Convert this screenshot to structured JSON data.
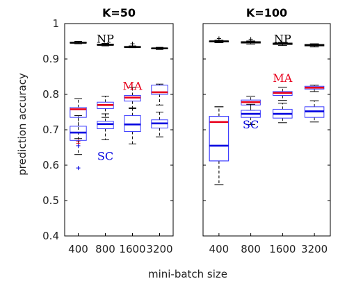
{
  "chart_data": {
    "type": "boxplot",
    "xlabel": "mini-batch size",
    "ylabel": "prediction accuracy",
    "ylim": [
      0.4,
      1
    ],
    "yticks": [
      "0.4",
      "0.5",
      "0.6",
      "0.7",
      "0.8",
      "0.9",
      "1"
    ],
    "categories": [
      "400",
      "800",
      "1600",
      "3200"
    ],
    "colors": {
      "NP": "#000000",
      "MA": "#e8001c",
      "SC": "#0000e0",
      "box": "#3a3aff",
      "median_NP": "#000000"
    },
    "panels": [
      {
        "title": "K=50",
        "annotations": [
          {
            "text": "NP",
            "color": "#000000",
            "x": "800",
            "y": 0.958
          },
          {
            "text": "MA",
            "color": "#e8001c",
            "x": "1600",
            "y": 0.825
          },
          {
            "text": "SC",
            "color": "#0000e0",
            "x": "800",
            "y": 0.626
          }
        ],
        "series": [
          {
            "name": "NP",
            "boxes": [
              {
                "whislo": 0.943,
                "q1": 0.945,
                "med": 0.946,
                "q3": 0.947,
                "whishi": 0.95,
                "outliers": []
              },
              {
                "whislo": 0.937,
                "q1": 0.939,
                "med": 0.94,
                "q3": 0.942,
                "whishi": 0.944,
                "outliers": []
              },
              {
                "whislo": 0.932,
                "q1": 0.933,
                "med": 0.934,
                "q3": 0.935,
                "whishi": 0.937,
                "outliers": [
                  0.943
                ]
              },
              {
                "whislo": 0.927,
                "q1": 0.929,
                "med": 0.93,
                "q3": 0.931,
                "whishi": 0.933,
                "outliers": []
              }
            ]
          },
          {
            "name": "MA",
            "boxes": [
              {
                "whislo": 0.675,
                "q1": 0.735,
                "med": 0.758,
                "q3": 0.763,
                "whishi": 0.788,
                "outliers": [
                  0.668,
                  0.662
                ]
              },
              {
                "whislo": 0.735,
                "q1": 0.76,
                "med": 0.77,
                "q3": 0.778,
                "whishi": 0.795,
                "outliers": []
              },
              {
                "whislo": 0.762,
                "q1": 0.781,
                "med": 0.791,
                "q3": 0.797,
                "whishi": 0.82,
                "outliers": []
              },
              {
                "whislo": 0.77,
                "q1": 0.8,
                "med": 0.806,
                "q3": 0.826,
                "whishi": 0.829,
                "outliers": []
              }
            ]
          },
          {
            "name": "SC",
            "boxes": [
              {
                "whislo": 0.63,
                "q1": 0.67,
                "med": 0.692,
                "q3": 0.71,
                "whishi": 0.74,
                "outliers": [
                  0.655,
                  0.592
                ]
              },
              {
                "whislo": 0.672,
                "q1": 0.703,
                "med": 0.716,
                "q3": 0.724,
                "whishi": 0.745,
                "outliers": []
              },
              {
                "whislo": 0.66,
                "q1": 0.695,
                "med": 0.715,
                "q3": 0.74,
                "whishi": 0.76,
                "outliers": []
              },
              {
                "whislo": 0.68,
                "q1": 0.705,
                "med": 0.718,
                "q3": 0.728,
                "whishi": 0.75,
                "outliers": []
              }
            ]
          }
        ]
      },
      {
        "title": "K=100",
        "annotations": [
          {
            "text": "NP",
            "color": "#000000",
            "x": "1600",
            "y": 0.958
          },
          {
            "text": "MA",
            "color": "#e8001c",
            "x": "1600",
            "y": 0.847
          },
          {
            "text": "SC",
            "color": "#0000e0",
            "x": "800",
            "y": 0.716
          }
        ],
        "series": [
          {
            "name": "NP",
            "boxes": [
              {
                "whislo": 0.946,
                "q1": 0.948,
                "med": 0.95,
                "q3": 0.951,
                "whishi": 0.953,
                "outliers": [
                  0.958
                ]
              },
              {
                "whislo": 0.942,
                "q1": 0.945,
                "med": 0.947,
                "q3": 0.949,
                "whishi": 0.951,
                "outliers": [
                  0.956
                ]
              },
              {
                "whislo": 0.938,
                "q1": 0.941,
                "med": 0.943,
                "q3": 0.945,
                "whishi": 0.947,
                "outliers": []
              },
              {
                "whislo": 0.934,
                "q1": 0.937,
                "med": 0.939,
                "q3": 0.941,
                "whishi": 0.943,
                "outliers": []
              }
            ]
          },
          {
            "name": "MA",
            "boxes": [
              {
                "whislo": 0.545,
                "q1": 0.612,
                "med": 0.722,
                "q3": 0.738,
                "whishi": 0.765,
                "outliers": []
              },
              {
                "whislo": 0.755,
                "q1": 0.77,
                "med": 0.778,
                "q3": 0.784,
                "whishi": 0.795,
                "outliers": []
              },
              {
                "whislo": 0.783,
                "q1": 0.797,
                "med": 0.804,
                "q3": 0.808,
                "whishi": 0.82,
                "outliers": []
              },
              {
                "whislo": 0.808,
                "q1": 0.815,
                "med": 0.819,
                "q3": 0.823,
                "whishi": 0.826,
                "outliers": []
              }
            ]
          },
          {
            "name": "SC",
            "boxes": [
              {
                "whislo": 0.545,
                "q1": 0.612,
                "med": 0.655,
                "q3": 0.738,
                "whishi": 0.765,
                "outliers": []
              },
              {
                "whislo": 0.715,
                "q1": 0.735,
                "med": 0.745,
                "q3": 0.755,
                "whishi": 0.772,
                "outliers": []
              },
              {
                "whislo": 0.72,
                "q1": 0.733,
                "med": 0.745,
                "q3": 0.758,
                "whishi": 0.775,
                "outliers": []
              },
              {
                "whislo": 0.722,
                "q1": 0.735,
                "med": 0.752,
                "q3": 0.765,
                "whishi": 0.782,
                "outliers": []
              }
            ]
          }
        ]
      }
    ]
  }
}
